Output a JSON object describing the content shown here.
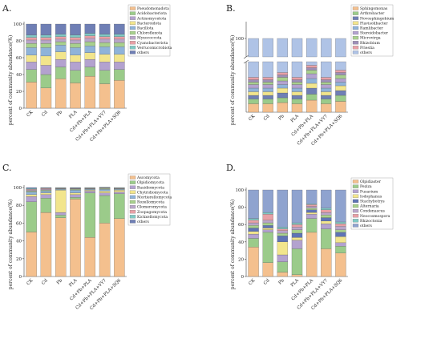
{
  "panels": [
    {
      "label": "A.",
      "ylabel": "percent of community abundance(%)"
    },
    {
      "label": "B.",
      "ylabel": "percent of community abundance(%)"
    },
    {
      "label": "C.",
      "ylabel": "percent of community abundance(%)"
    },
    {
      "label": "D.",
      "ylabel": "percent of community abundance(%)"
    }
  ],
  "chart_data": [
    {
      "type": "bar",
      "stacked": true,
      "title": "",
      "panel": "A.",
      "ylabel": "percent of community abundance(%)",
      "xlabel": "",
      "ylim": [
        0,
        100
      ],
      "yticks": [
        0,
        20,
        40,
        60,
        80,
        100
      ],
      "categories": [
        "CK",
        "Cd",
        "Pb",
        "PLA",
        "Cd+Pb+PLA",
        "Cd+Pb+PLA+VY7",
        "Cd+Pb+PLA+SQ6"
      ],
      "legend_position": "right",
      "series": [
        {
          "name": "Pseudomonadota",
          "color": "#F4C08E",
          "values": [
            31,
            24,
            35,
            30,
            38,
            29,
            33
          ]
        },
        {
          "name": "Acidobacteriota",
          "color": "#9BCB8A",
          "values": [
            15,
            16,
            14,
            15,
            11,
            16,
            13
          ]
        },
        {
          "name": "Actinomycetota",
          "color": "#B3A2CF",
          "values": [
            9,
            11,
            9,
            10,
            9,
            10,
            9
          ]
        },
        {
          "name": "Bacteroidota",
          "color": "#F2E58C",
          "values": [
            8,
            11,
            9,
            8,
            8,
            9,
            9
          ]
        },
        {
          "name": "Bacillota",
          "color": "#8FB3D9",
          "values": [
            9,
            10,
            8,
            9,
            8,
            9,
            9
          ]
        },
        {
          "name": "Chloroflexota",
          "color": "#A8D08D",
          "values": [
            5,
            5,
            4,
            5,
            5,
            5,
            5
          ]
        },
        {
          "name": "Myxococcota",
          "color": "#B9A5C9",
          "values": [
            4,
            4,
            3,
            4,
            4,
            4,
            4
          ]
        },
        {
          "name": "Cyanobacteriota",
          "color": "#E8A0A6",
          "values": [
            3,
            3,
            3,
            3,
            3,
            3,
            3
          ]
        },
        {
          "name": "Verrucomicrobiota",
          "color": "#7FC9C4",
          "values": [
            3,
            3,
            3,
            3,
            3,
            3,
            3
          ]
        },
        {
          "name": "others",
          "color": "#6F7FB5",
          "values": [
            13,
            13,
            12,
            13,
            11,
            12,
            12
          ]
        }
      ]
    },
    {
      "type": "bar",
      "stacked": true,
      "title": "",
      "panel": "B.",
      "ylabel": "percent of community abundance(%)",
      "xlabel": "",
      "ylim": [
        0,
        100
      ],
      "yticks": [
        100
      ],
      "axis_break": true,
      "categories": [
        "CK",
        "Cd",
        "Pb",
        "PLA",
        "Cd+Pb+PLA",
        "Cd+Pb+PLA+VY7",
        "Cd+Pb+PLA+SQ6"
      ],
      "legend_position": "right",
      "series": [
        {
          "name": "Sphingomonas",
          "color": "#F4C08E",
          "values": [
            3.5,
            3.5,
            4,
            3.5,
            5,
            3.5,
            4.5
          ]
        },
        {
          "name": "Arthrobacter",
          "color": "#9BCB8A",
          "values": [
            2,
            2,
            2,
            2,
            2.5,
            2,
            2.5
          ]
        },
        {
          "name": "Novosphingobium",
          "color": "#6F7FB5",
          "values": [
            1.5,
            1.5,
            2,
            1.5,
            2.5,
            1.5,
            2
          ]
        },
        {
          "name": "Flavisolibacter",
          "color": "#F2E58C",
          "values": [
            1.5,
            1.5,
            2,
            1.5,
            2,
            1.5,
            2
          ]
        },
        {
          "name": "Ramlibacter",
          "color": "#8FB3D9",
          "values": [
            1.5,
            1.5,
            1.5,
            1.5,
            2,
            1.5,
            1.5
          ]
        },
        {
          "name": "Steroidobacter",
          "color": "#B3A2CF",
          "values": [
            1.5,
            1.5,
            1.5,
            1.5,
            2,
            1.5,
            1.5
          ]
        },
        {
          "name": "Microvirga",
          "color": "#A8D08D",
          "values": [
            1,
            1,
            1.5,
            1,
            1.5,
            1,
            1.5
          ]
        },
        {
          "name": "Rhizobium",
          "color": "#9E8FB8",
          "values": [
            1,
            1,
            1,
            1,
            1,
            1,
            1
          ]
        },
        {
          "name": "Priestia",
          "color": "#E8A0A6",
          "values": [
            1,
            1,
            1,
            1,
            1,
            1,
            1
          ]
        },
        {
          "name": "others",
          "color": "#AFC3E6",
          "values": [
            85.5,
            85.5,
            83.5,
            85.5,
            80.5,
            85.5,
            82.5
          ]
        }
      ]
    },
    {
      "type": "bar",
      "stacked": true,
      "title": "",
      "panel": "C.",
      "ylabel": "percent of community abundance(%)",
      "xlabel": "",
      "ylim": [
        0,
        100
      ],
      "yticks": [
        0,
        20,
        40,
        60,
        80,
        100
      ],
      "categories": [
        "CK",
        "Cd",
        "Pb",
        "PLA",
        "Cd+Pb+PLA",
        "Cd+Pb+PLA+VY7",
        "Cd+Pb+PLA+SQ6"
      ],
      "legend_position": "right",
      "series": [
        {
          "name": "Ascomycota",
          "color": "#F4C08E",
          "values": [
            50,
            72,
            66,
            87,
            44,
            60,
            65
          ]
        },
        {
          "name": "Olpidiomycota",
          "color": "#9BCB8A",
          "values": [
            34,
            16,
            3,
            2,
            50,
            31,
            28
          ]
        },
        {
          "name": "Basidiomycota",
          "color": "#B3A2CF",
          "values": [
            6,
            4,
            3,
            3,
            2,
            3,
            2
          ]
        },
        {
          "name": "Chytridiomycota",
          "color": "#F2E58C",
          "values": [
            2,
            2,
            25,
            2,
            1,
            2,
            2
          ]
        },
        {
          "name": "Mortierellomycota",
          "color": "#8FB3D9",
          "values": [
            3,
            2,
            1,
            3,
            1,
            2,
            1
          ]
        },
        {
          "name": "Rozellomycota",
          "color": "#A8D08D",
          "values": [
            1,
            1,
            0.5,
            1,
            0.5,
            1,
            0.5
          ]
        },
        {
          "name": "Glomeromycota",
          "color": "#B9A5C9",
          "values": [
            1,
            1,
            0.5,
            0.5,
            0.5,
            0.5,
            0.5
          ]
        },
        {
          "name": "Zoopagomycota",
          "color": "#E8A0A6",
          "values": [
            1,
            1,
            0.5,
            0.5,
            0.5,
            0.5,
            0.5
          ]
        },
        {
          "name": "Kickxellomycota",
          "color": "#7FC9C4",
          "values": [
            1,
            0.5,
            0.5,
            0.5,
            0.5,
            0.5,
            0.5
          ]
        },
        {
          "name": "others",
          "color": "#6F7FB5",
          "values": [
            1,
            0.5,
            0,
            0.5,
            0,
            0,
            0
          ]
        }
      ]
    },
    {
      "type": "bar",
      "stacked": true,
      "title": "",
      "panel": "D.",
      "ylabel": "percent of community abundance(%)",
      "xlabel": "",
      "ylim": [
        0,
        100
      ],
      "yticks": [
        0,
        20,
        40,
        60,
        80,
        100
      ],
      "categories": [
        "CK",
        "Cd",
        "Pb",
        "PLA",
        "Cd+Pb+PLA",
        "Cd+Pb+PLA+VY7",
        "Cd+Pb+PLA+SQ6"
      ],
      "legend_position": "right",
      "series": [
        {
          "name": "Olpidiaster",
          "color": "#F4C08E",
          "values": [
            34,
            16,
            5,
            2,
            51,
            32,
            27
          ]
        },
        {
          "name": "Peziza",
          "color": "#9BCB8A",
          "values": [
            10,
            35,
            12,
            30,
            16,
            23,
            8
          ]
        },
        {
          "name": "Fusarium",
          "color": "#B3A2CF",
          "values": [
            5,
            3,
            8,
            10,
            5,
            6,
            4
          ]
        },
        {
          "name": "Iodophanus",
          "color": "#F2E58C",
          "values": [
            3,
            2,
            15,
            3,
            2,
            3,
            7
          ]
        },
        {
          "name": "Stachybotrys",
          "color": "#5F74B5",
          "values": [
            4,
            3,
            7,
            5,
            3,
            4,
            5
          ]
        },
        {
          "name": "Alternaria",
          "color": "#A8D08D",
          "values": [
            3,
            3,
            3,
            4,
            2,
            3,
            3
          ]
        },
        {
          "name": "Condenascus",
          "color": "#B9A5C9",
          "values": [
            3,
            3,
            3,
            3,
            2,
            3,
            4
          ]
        },
        {
          "name": "Neocosmospora",
          "color": "#E8A0A6",
          "values": [
            3,
            7,
            2,
            3,
            2,
            3,
            3
          ]
        },
        {
          "name": "Rhizoctonia",
          "color": "#7FC9C4",
          "values": [
            2,
            2,
            2,
            2,
            1,
            2,
            2
          ]
        },
        {
          "name": "others",
          "color": "#8FA3CF",
          "values": [
            33,
            26,
            43,
            38,
            16,
            21,
            37
          ]
        }
      ]
    }
  ]
}
